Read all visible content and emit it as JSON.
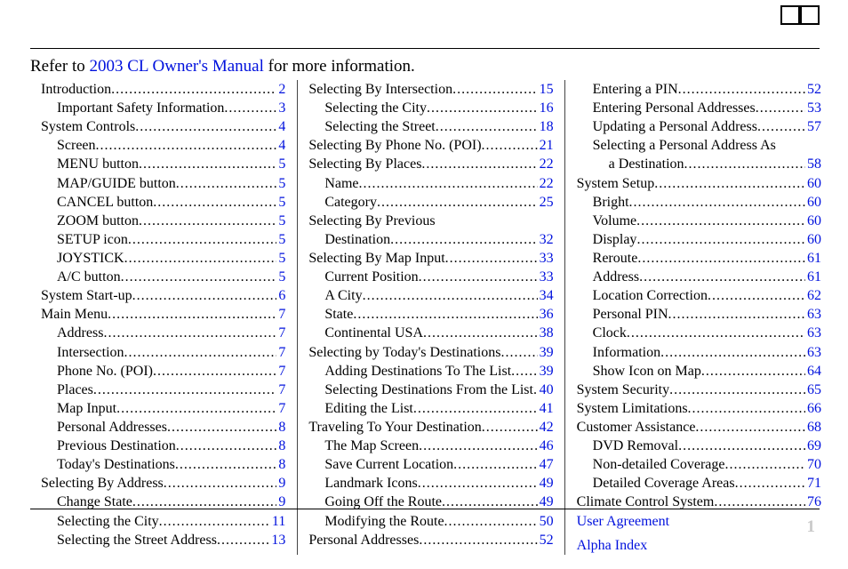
{
  "refer": {
    "prefix": "Refer to ",
    "link_text": "2003 CL Owner's Manual",
    "suffix": " for more information."
  },
  "page_number": "1",
  "toc": [
    {
      "label": "Introduction",
      "page": "2",
      "indent": 0
    },
    {
      "label": "Important Safety Information",
      "page": "3",
      "indent": 1
    },
    {
      "label": "System Controls",
      "page": "4",
      "indent": 0
    },
    {
      "label": "Screen",
      "page": "4",
      "indent": 1
    },
    {
      "label": "MENU button",
      "page": "5",
      "indent": 1
    },
    {
      "label": "MAP/GUIDE button",
      "page": "5",
      "indent": 1
    },
    {
      "label": "CANCEL button",
      "page": "5",
      "indent": 1
    },
    {
      "label": "ZOOM button",
      "page": "5",
      "indent": 1
    },
    {
      "label": "SETUP icon",
      "page": "5",
      "indent": 1
    },
    {
      "label": "JOYSTICK",
      "page": "5",
      "indent": 1
    },
    {
      "label": "A/C button",
      "page": "5",
      "indent": 1
    },
    {
      "label": "System Start-up",
      "page": "6",
      "indent": 0
    },
    {
      "label": "Main Menu",
      "page": "7",
      "indent": 0
    },
    {
      "label": "Address",
      "page": "7",
      "indent": 1
    },
    {
      "label": "Intersection",
      "page": "7",
      "indent": 1
    },
    {
      "label": "Phone No. (POI)",
      "page": "7",
      "indent": 1
    },
    {
      "label": "Places",
      "page": "7",
      "indent": 1
    },
    {
      "label": "Map Input",
      "page": "7",
      "indent": 1
    },
    {
      "label": "Personal Addresses",
      "page": "8",
      "indent": 1
    },
    {
      "label": "Previous Destination",
      "page": "8",
      "indent": 1
    },
    {
      "label": "Today's Destinations",
      "page": "8",
      "indent": 1
    },
    {
      "label": "Selecting By Address",
      "page": "9",
      "indent": 0
    },
    {
      "label": "Change State",
      "page": "9",
      "indent": 1
    },
    {
      "label": "Selecting the City",
      "page": "11",
      "indent": 1
    },
    {
      "label": "Selecting the Street Address",
      "page": "13",
      "indent": 1
    },
    {
      "label": "Selecting By Intersection",
      "page": "15",
      "indent": 0
    },
    {
      "label": "Selecting the City",
      "page": "16",
      "indent": 1
    },
    {
      "label": "Selecting the Street",
      "page": "18",
      "indent": 1
    },
    {
      "label": "Selecting By Phone No. (POI)",
      "page": "21",
      "indent": 0
    },
    {
      "label": "Selecting By Places",
      "page": "22",
      "indent": 0
    },
    {
      "label": "Name",
      "page": "22",
      "indent": 1
    },
    {
      "label": "Category",
      "page": "25",
      "indent": 1
    },
    {
      "label": "Selecting By Previous",
      "page": "",
      "indent": 0,
      "wrap_no_page": true
    },
    {
      "label": "Destination",
      "page": "32",
      "indent": 1
    },
    {
      "label": "Selecting By Map Input",
      "page": "33",
      "indent": 0
    },
    {
      "label": "Current Position",
      "page": "33",
      "indent": 1
    },
    {
      "label": "A City",
      "page": "34",
      "indent": 1
    },
    {
      "label": "State",
      "page": "36",
      "indent": 1
    },
    {
      "label": "Continental USA",
      "page": "38",
      "indent": 1
    },
    {
      "label": "Selecting by Today's Destinations",
      "page": "39",
      "indent": 0
    },
    {
      "label": "Adding Destinations To The List",
      "page": "39",
      "indent": 1
    },
    {
      "label": "Selecting Destinations From the List",
      "page": "40",
      "indent": 1
    },
    {
      "label": "Editing the List",
      "page": "41",
      "indent": 1
    },
    {
      "label": "Traveling To Your Destination",
      "page": "42",
      "indent": 0
    },
    {
      "label": "The Map Screen ",
      "page": "46",
      "indent": 1
    },
    {
      "label": "Save Current Location",
      "page": "47",
      "indent": 1
    },
    {
      "label": "Landmark Icons",
      "page": "49",
      "indent": 1
    },
    {
      "label": "Going Off the Route",
      "page": "49",
      "indent": 1
    },
    {
      "label": "Modifying the Route",
      "page": "50",
      "indent": 1
    },
    {
      "label": "Personal Addresses",
      "page": "52",
      "indent": 0
    },
    {
      "label": "Entering a PIN",
      "page": "52",
      "indent": 1
    },
    {
      "label": "Entering Personal Addresses",
      "page": "53",
      "indent": 1
    },
    {
      "label": "Updating a Personal Address",
      "page": "57",
      "indent": 1
    },
    {
      "label": "Selecting a Personal Address As",
      "page": "",
      "indent": 1,
      "wrap_no_page": true
    },
    {
      "label": "a Destination",
      "page": "58",
      "indent": 2
    },
    {
      "label": "System Setup",
      "page": "60",
      "indent": 0
    },
    {
      "label": "Bright",
      "page": "60",
      "indent": 1
    },
    {
      "label": "Volume",
      "page": "60",
      "indent": 1
    },
    {
      "label": "Display",
      "page": "60",
      "indent": 1
    },
    {
      "label": "Reroute",
      "page": "61",
      "indent": 1
    },
    {
      "label": "Address",
      "page": "61",
      "indent": 1
    },
    {
      "label": "Location Correction",
      "page": "62",
      "indent": 1
    },
    {
      "label": "Personal PIN",
      "page": "63",
      "indent": 1
    },
    {
      "label": "Clock",
      "page": "63",
      "indent": 1
    },
    {
      "label": "Information",
      "page": "63",
      "indent": 1
    },
    {
      "label": "Show Icon on Map",
      "page": "64",
      "indent": 1
    },
    {
      "label": "System Security",
      "page": "65",
      "indent": 0
    },
    {
      "label": "System Limitations",
      "page": "66",
      "indent": 0
    },
    {
      "label": "Customer Assistance",
      "page": "68",
      "indent": 0
    },
    {
      "label": "DVD Removal",
      "page": "69",
      "indent": 1
    },
    {
      "label": "Non-detailed Coverage",
      "page": "70",
      "indent": 1
    },
    {
      "label": "Detailed Coverage Areas",
      "page": "71",
      "indent": 1
    },
    {
      "label": "Climate Control System",
      "page": "76",
      "indent": 0
    },
    {
      "label": "User Agreement",
      "page": "",
      "indent": 0,
      "link_only": true
    },
    {
      "label": "",
      "page": "",
      "indent": 0,
      "spacer": true
    },
    {
      "label": "Alpha Index",
      "page": "",
      "indent": 0,
      "link_only": true
    }
  ],
  "leader_dots": "............................................................................................................"
}
